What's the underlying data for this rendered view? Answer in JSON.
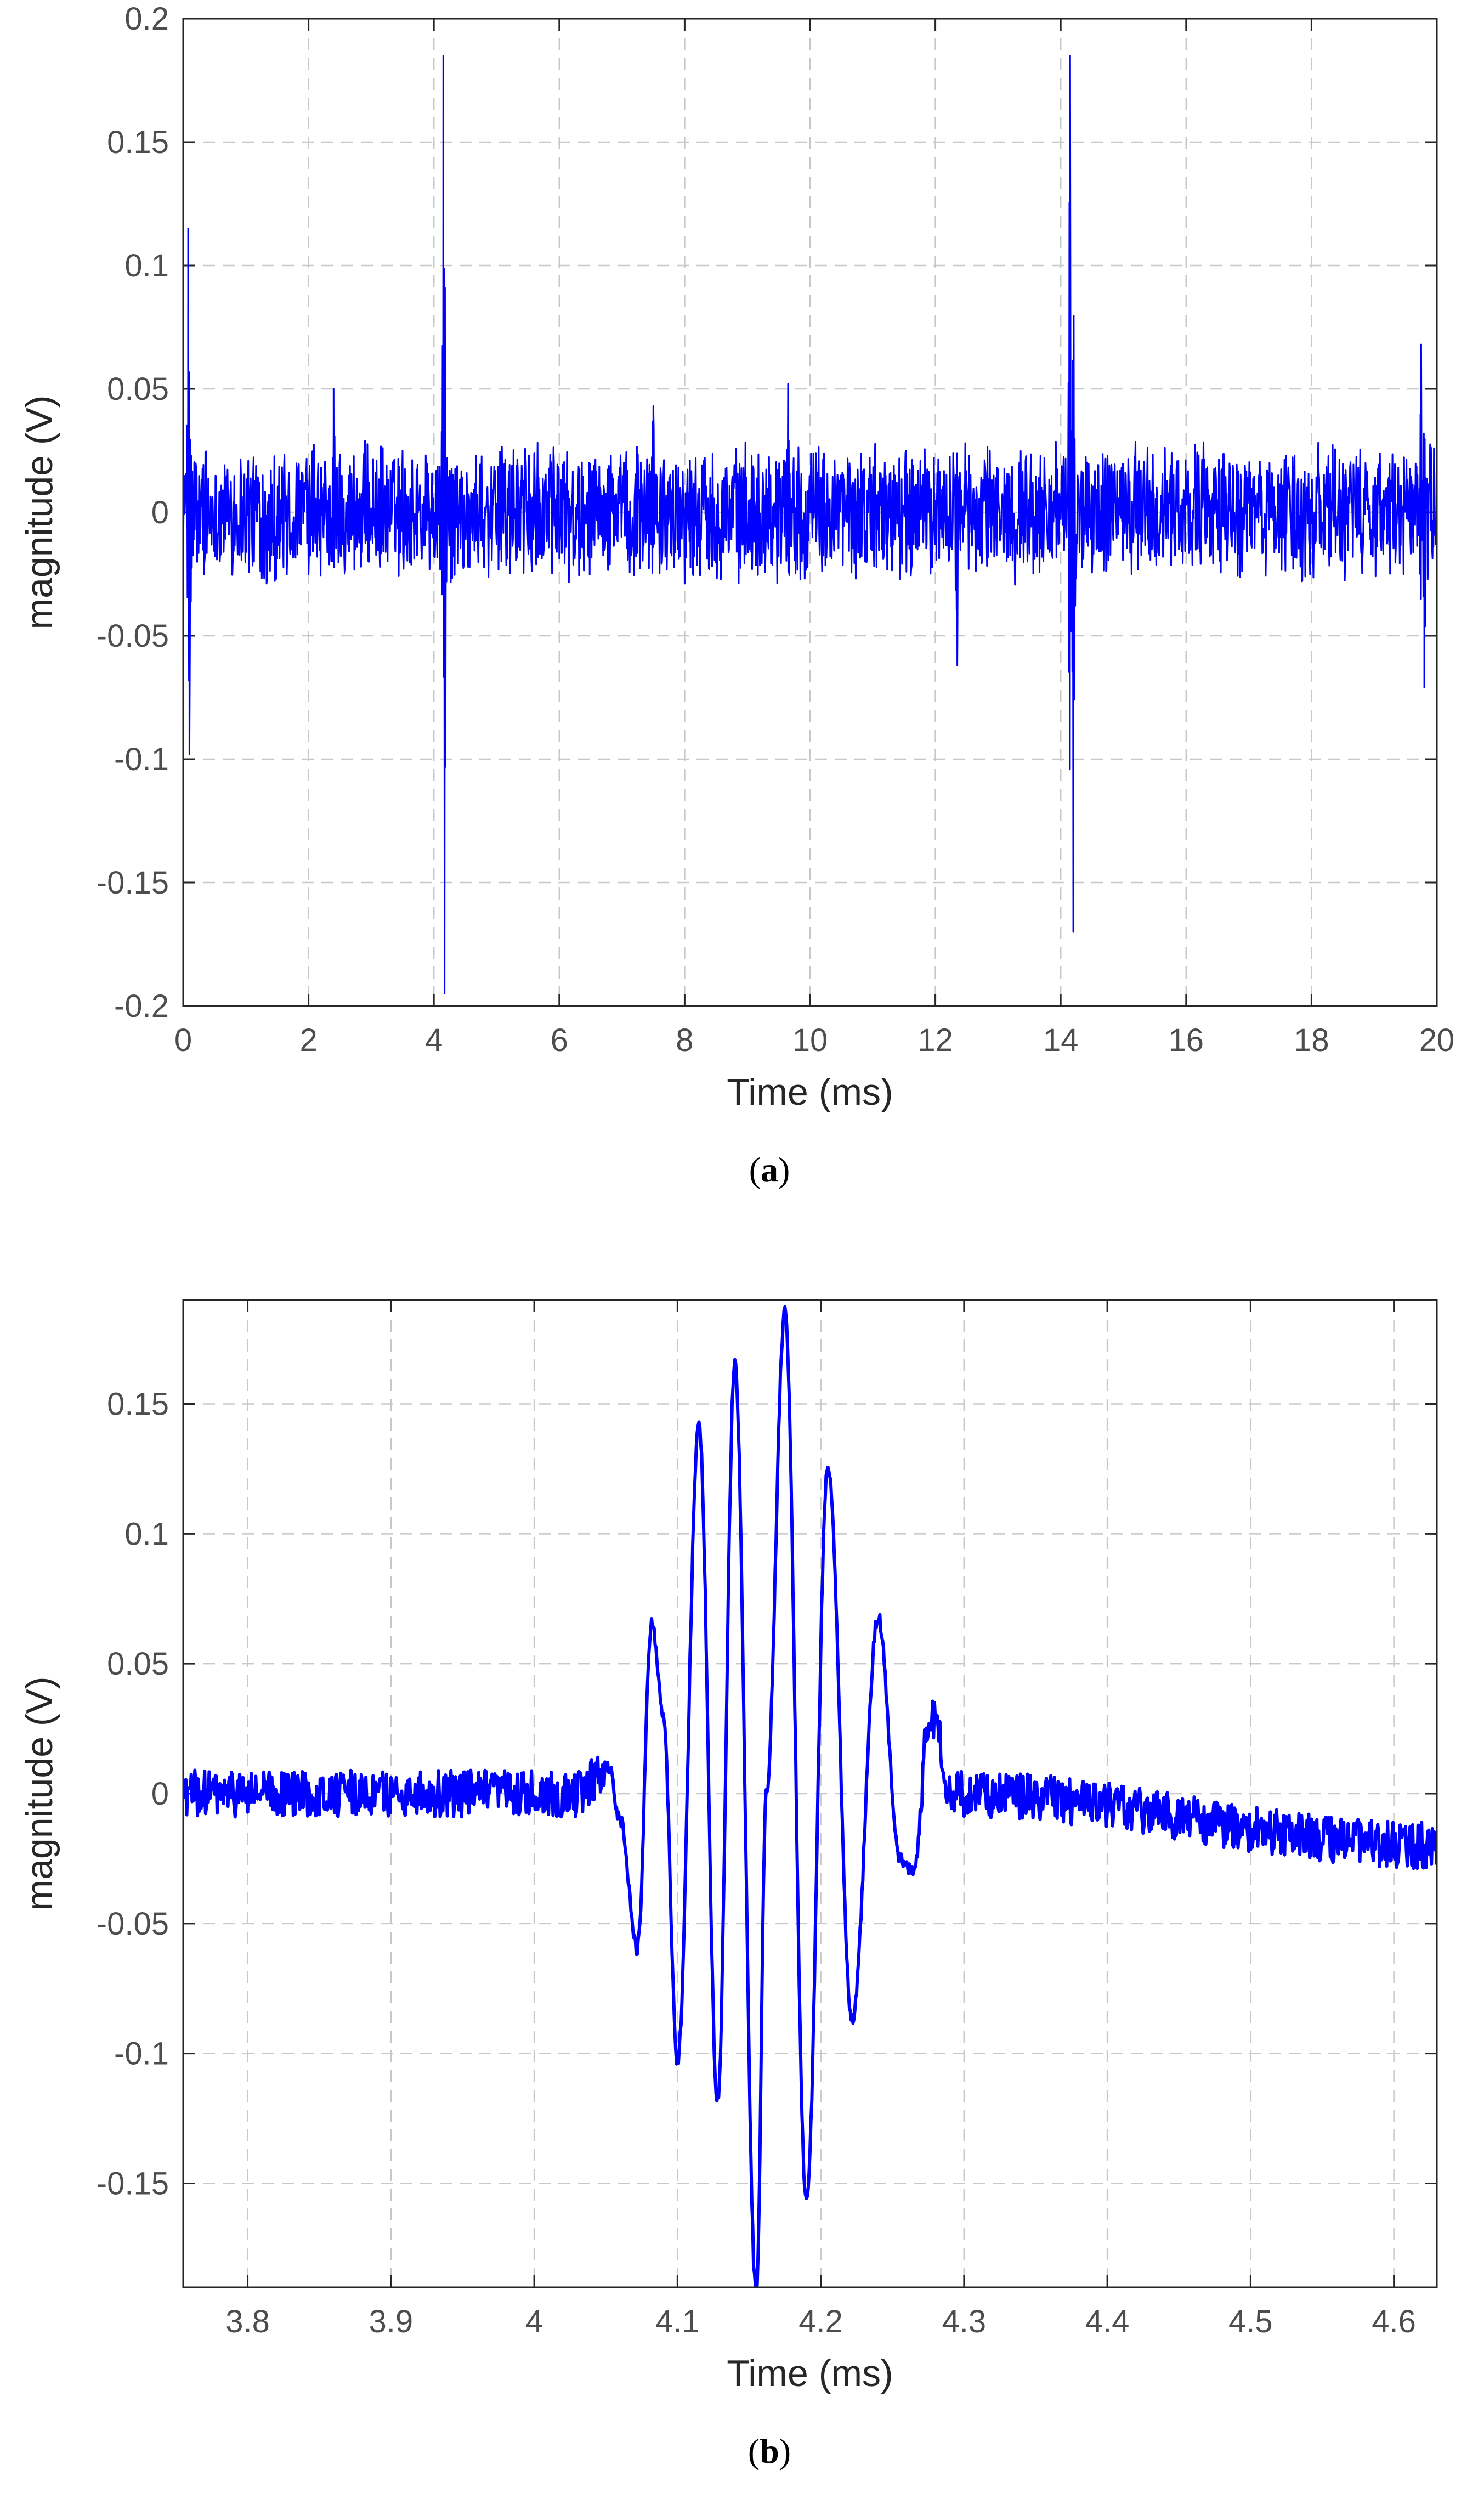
{
  "chart_data": [
    {
      "type": "line",
      "caption_letter": "a",
      "xlabel": "Time (ms)",
      "ylabel": "magnitude (V)",
      "xlim": [
        0,
        20
      ],
      "ylim": [
        -0.2,
        0.2
      ],
      "xticks": [
        0,
        2,
        4,
        6,
        8,
        10,
        12,
        14,
        16,
        18,
        20
      ],
      "yticks": [
        -0.2,
        -0.15,
        -0.1,
        -0.05,
        0,
        0.05,
        0.1,
        0.15,
        0.2
      ],
      "xtick_labels": [
        "0",
        "2",
        "4",
        "6",
        "8",
        "10",
        "12",
        "14",
        "16",
        "18",
        "20"
      ],
      "ytick_labels": [
        "-0.2",
        "-0.15",
        "-0.1",
        "-0.05",
        "0",
        "0.05",
        "0.1",
        "0.15",
        "0.2"
      ],
      "grid": true,
      "series": [
        {
          "color": "#0000ff",
          "noise_amplitude": 0.03,
          "spikes": [
            {
              "x": 0.08,
              "y": 0.115
            },
            {
              "x": 0.1,
              "y": -0.098
            },
            {
              "x": 2.4,
              "y": 0.05
            },
            {
              "x": 4.15,
              "y": 0.185
            },
            {
              "x": 4.17,
              "y": -0.195
            },
            {
              "x": 7.5,
              "y": 0.043
            },
            {
              "x": 9.65,
              "y": 0.052
            },
            {
              "x": 12.35,
              "y": -0.062
            },
            {
              "x": 14.15,
              "y": 0.185
            },
            {
              "x": 14.2,
              "y": -0.17
            },
            {
              "x": 19.75,
              "y": 0.068
            },
            {
              "x": 19.8,
              "y": -0.071
            }
          ]
        }
      ]
    },
    {
      "type": "line",
      "caption_letter": "b",
      "xlabel": "Time (ms)",
      "ylabel": "magnitude (V)",
      "xlim": [
        3.755,
        4.63
      ],
      "ylim": [
        -0.19,
        0.19
      ],
      "xticks": [
        3.8,
        3.9,
        4.0,
        4.1,
        4.2,
        4.3,
        4.4,
        4.5,
        4.6
      ],
      "yticks": [
        -0.15,
        -0.1,
        -0.05,
        0,
        0.05,
        0.1,
        0.15
      ],
      "xtick_labels": [
        "3.8",
        "3.9",
        "4",
        "4.1",
        "4.2",
        "4.3",
        "4.4",
        "4.5",
        "4.6"
      ],
      "ytick_labels": [
        "-0.15",
        "-0.1",
        "-0.05",
        "0",
        "0.05",
        "0.1",
        "0.15"
      ],
      "grid": true,
      "series": [
        {
          "color": "#0000ff",
          "noise_amplitude": 0.009,
          "x": [
            3.755,
            4.0,
            4.03,
            4.052,
            4.06,
            4.072,
            4.082,
            4.09,
            4.1,
            4.115,
            4.128,
            4.14,
            4.155,
            4.162,
            4.175,
            4.19,
            4.205,
            4.222,
            4.24,
            4.255,
            4.265,
            4.275,
            4.28,
            4.29,
            4.63
          ],
          "y": [
            0,
            0,
            0,
            0.01,
            -0.01,
            -0.06,
            0.067,
            0.03,
            -0.103,
            0.142,
            -0.118,
            0.165,
            -0.193,
            0.0,
            0.185,
            -0.158,
            0.126,
            -0.087,
            0.068,
            -0.025,
            -0.03,
            0.025,
            0.03,
            0,
            -0.02
          ]
        }
      ]
    }
  ]
}
